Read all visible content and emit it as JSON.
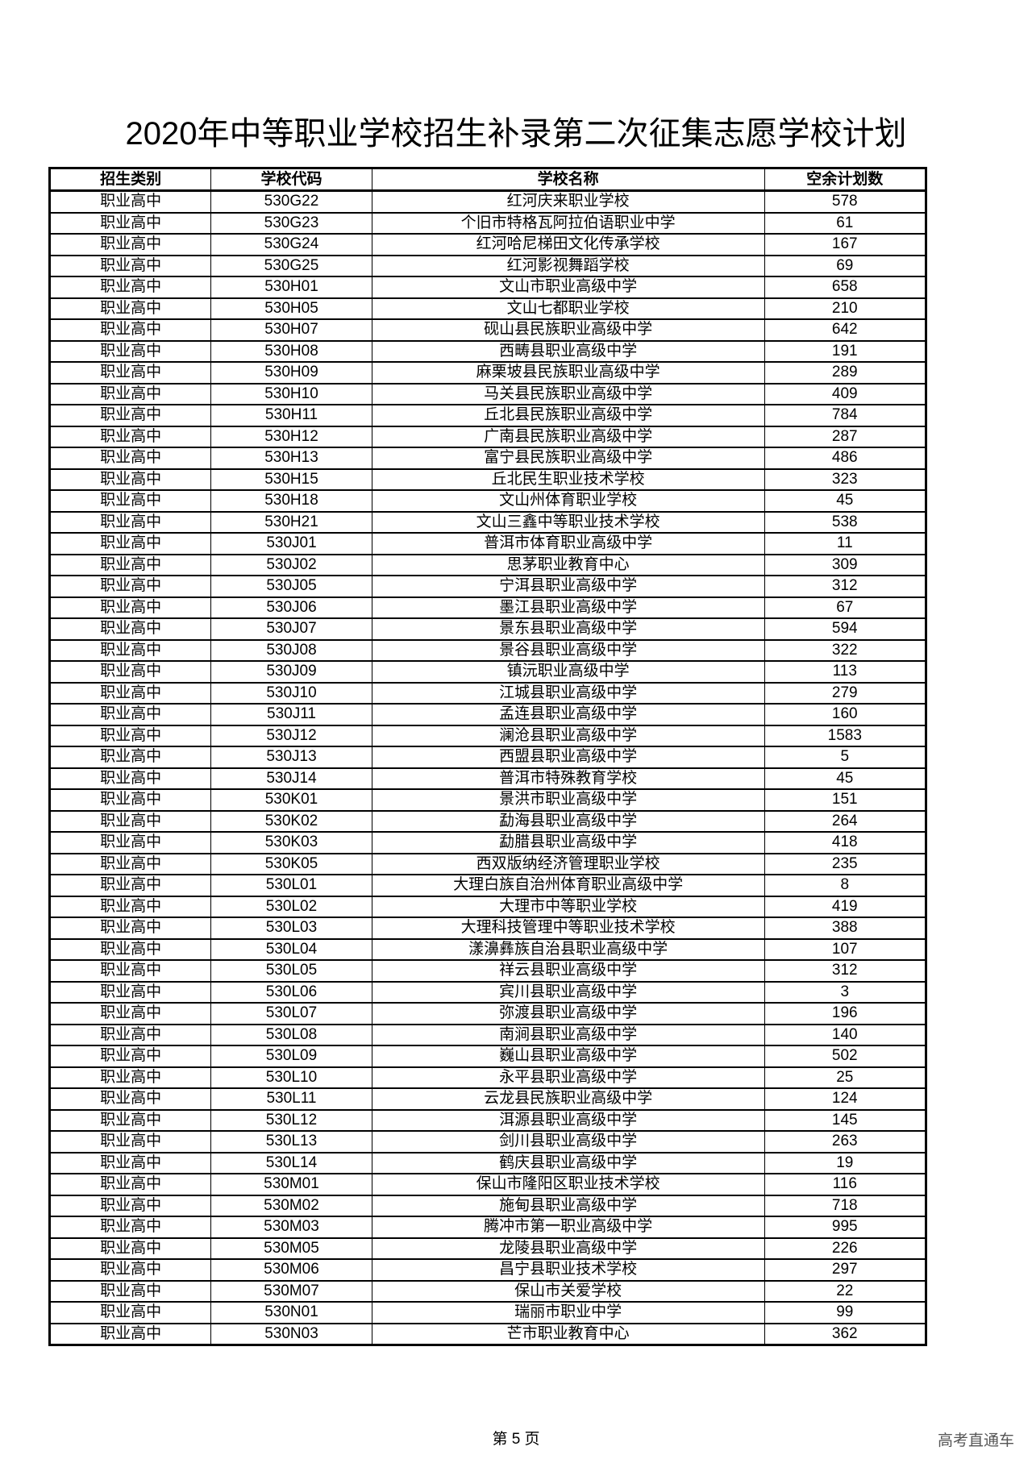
{
  "title": "2020年中等职业学校招生补录第二次征集志愿学校计划",
  "table": {
    "headers": [
      "招生类别",
      "学校代码",
      "学校名称",
      "空余计划数"
    ],
    "rows": [
      [
        "职业高中",
        "530G22",
        "红河庆来职业学校",
        "578"
      ],
      [
        "职业高中",
        "530G23",
        "个旧市特格瓦阿拉伯语职业中学",
        "61"
      ],
      [
        "职业高中",
        "530G24",
        "红河哈尼梯田文化传承学校",
        "167"
      ],
      [
        "职业高中",
        "530G25",
        "红河影视舞蹈学校",
        "69"
      ],
      [
        "职业高中",
        "530H01",
        "文山市职业高级中学",
        "658"
      ],
      [
        "职业高中",
        "530H05",
        "文山七都职业学校",
        "210"
      ],
      [
        "职业高中",
        "530H07",
        "砚山县民族职业高级中学",
        "642"
      ],
      [
        "职业高中",
        "530H08",
        "西畴县职业高级中学",
        "191"
      ],
      [
        "职业高中",
        "530H09",
        "麻栗坡县民族职业高级中学",
        "289"
      ],
      [
        "职业高中",
        "530H10",
        "马关县民族职业高级中学",
        "409"
      ],
      [
        "职业高中",
        "530H11",
        "丘北县民族职业高级中学",
        "784"
      ],
      [
        "职业高中",
        "530H12",
        "广南县民族职业高级中学",
        "287"
      ],
      [
        "职业高中",
        "530H13",
        "富宁县民族职业高级中学",
        "486"
      ],
      [
        "职业高中",
        "530H15",
        "丘北民生职业技术学校",
        "323"
      ],
      [
        "职业高中",
        "530H18",
        "文山州体育职业学校",
        "45"
      ],
      [
        "职业高中",
        "530H21",
        "文山三鑫中等职业技术学校",
        "538"
      ],
      [
        "职业高中",
        "530J01",
        "普洱市体育职业高级中学",
        "11"
      ],
      [
        "职业高中",
        "530J02",
        "思茅职业教育中心",
        "309"
      ],
      [
        "职业高中",
        "530J05",
        "宁洱县职业高级中学",
        "312"
      ],
      [
        "职业高中",
        "530J06",
        "墨江县职业高级中学",
        "67"
      ],
      [
        "职业高中",
        "530J07",
        "景东县职业高级中学",
        "594"
      ],
      [
        "职业高中",
        "530J08",
        "景谷县职业高级中学",
        "322"
      ],
      [
        "职业高中",
        "530J09",
        "镇沅职业高级中学",
        "113"
      ],
      [
        "职业高中",
        "530J10",
        "江城县职业高级中学",
        "279"
      ],
      [
        "职业高中",
        "530J11",
        "孟连县职业高级中学",
        "160"
      ],
      [
        "职业高中",
        "530J12",
        "澜沧县职业高级中学",
        "1583"
      ],
      [
        "职业高中",
        "530J13",
        "西盟县职业高级中学",
        "5"
      ],
      [
        "职业高中",
        "530J14",
        "普洱市特殊教育学校",
        "45"
      ],
      [
        "职业高中",
        "530K01",
        "景洪市职业高级中学",
        "151"
      ],
      [
        "职业高中",
        "530K02",
        "勐海县职业高级中学",
        "264"
      ],
      [
        "职业高中",
        "530K03",
        "勐腊县职业高级中学",
        "418"
      ],
      [
        "职业高中",
        "530K05",
        "西双版纳经济管理职业学校",
        "235"
      ],
      [
        "职业高中",
        "530L01",
        "大理白族自治州体育职业高级中学",
        "8"
      ],
      [
        "职业高中",
        "530L02",
        "大理市中等职业学校",
        "419"
      ],
      [
        "职业高中",
        "530L03",
        "大理科技管理中等职业技术学校",
        "388"
      ],
      [
        "职业高中",
        "530L04",
        "漾濞彝族自治县职业高级中学",
        "107"
      ],
      [
        "职业高中",
        "530L05",
        "祥云县职业高级中学",
        "312"
      ],
      [
        "职业高中",
        "530L06",
        "宾川县职业高级中学",
        "3"
      ],
      [
        "职业高中",
        "530L07",
        "弥渡县职业高级中学",
        "196"
      ],
      [
        "职业高中",
        "530L08",
        "南涧县职业高级中学",
        "140"
      ],
      [
        "职业高中",
        "530L09",
        "巍山县职业高级中学",
        "502"
      ],
      [
        "职业高中",
        "530L10",
        "永平县职业高级中学",
        "25"
      ],
      [
        "职业高中",
        "530L11",
        "云龙县民族职业高级中学",
        "124"
      ],
      [
        "职业高中",
        "530L12",
        "洱源县职业高级中学",
        "145"
      ],
      [
        "职业高中",
        "530L13",
        "剑川县职业高级中学",
        "263"
      ],
      [
        "职业高中",
        "530L14",
        "鹤庆县职业高级中学",
        "19"
      ],
      [
        "职业高中",
        "530M01",
        "保山市隆阳区职业技术学校",
        "116"
      ],
      [
        "职业高中",
        "530M02",
        "施甸县职业高级中学",
        "718"
      ],
      [
        "职业高中",
        "530M03",
        "腾冲市第一职业高级中学",
        "995"
      ],
      [
        "职业高中",
        "530M05",
        "龙陵县职业高级中学",
        "226"
      ],
      [
        "职业高中",
        "530M06",
        "昌宁县职业技术学校",
        "297"
      ],
      [
        "职业高中",
        "530M07",
        "保山市关爱学校",
        "22"
      ],
      [
        "职业高中",
        "530N01",
        "瑞丽市职业中学",
        "99"
      ],
      [
        "职业高中",
        "530N03",
        "芒市职业教育中心",
        "362"
      ]
    ]
  },
  "footer": {
    "page_label": "第 5 页"
  },
  "watermark": "高考直通车"
}
